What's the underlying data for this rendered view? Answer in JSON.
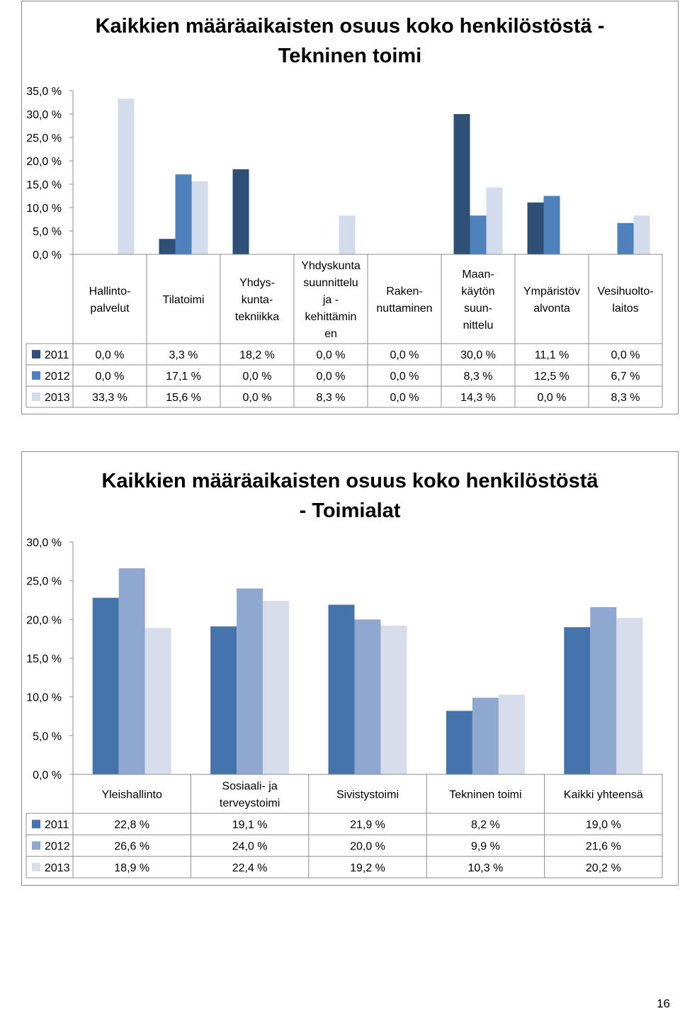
{
  "page_number": "16",
  "chart_data": [
    {
      "type": "bar",
      "title": "Kaikkien määräaikaisten osuus koko henkilöstöstä -\nTekninen toimi",
      "ylim": [
        0,
        35
      ],
      "y_ticks": [
        "0,0 %",
        "5,0 %",
        "10,0 %",
        "15,0 %",
        "20,0 %",
        "25,0 %",
        "30,0 %",
        "35,0 %"
      ],
      "grid": false,
      "legend": "table-below",
      "categories": [
        [
          "Hallinto-",
          "palvelut"
        ],
        [
          "Tilatoimi"
        ],
        [
          "Yhdys-",
          "kunta-",
          "tekniikka"
        ],
        [
          "Yhdyskunta",
          "suunnittelu",
          "ja -",
          "kehittämin",
          "en"
        ],
        [
          "Raken-",
          "nuttaminen"
        ],
        [
          "Maan-",
          "käytön",
          "suun-",
          "nittelu"
        ],
        [
          "Ympäristöv",
          "alvonta"
        ],
        [
          "Vesihuolto-",
          "laitos"
        ]
      ],
      "series": [
        {
          "name": "2011",
          "color": "#2e5077",
          "values": [
            0.0,
            3.3,
            18.2,
            0.0,
            0.0,
            30.0,
            11.1,
            0.0
          ],
          "labels": [
            "0,0 %",
            "3,3 %",
            "18,2 %",
            "0,0 %",
            "0,0 %",
            "30,0 %",
            "11,1 %",
            "0,0 %"
          ]
        },
        {
          "name": "2012",
          "color": "#4f81bd",
          "values": [
            0.0,
            17.1,
            0.0,
            0.0,
            0.0,
            8.3,
            12.5,
            6.7
          ],
          "labels": [
            "0,0 %",
            "17,1 %",
            "0,0 %",
            "0,0 %",
            "0,0 %",
            "8,3 %",
            "12,5 %",
            "6,7 %"
          ]
        },
        {
          "name": "2013",
          "color": "#d3dcec",
          "values": [
            33.3,
            15.6,
            0.0,
            8.3,
            0.0,
            14.3,
            0.0,
            8.3
          ],
          "labels": [
            "33,3 %",
            "15,6 %",
            "0,0 %",
            "8,3 %",
            "0,0 %",
            "14,3 %",
            "0,0 %",
            "8,3 %"
          ]
        }
      ]
    },
    {
      "type": "bar",
      "title": "Kaikkien määräaikaisten osuus koko henkilöstöstä\n- Toimialat",
      "ylim": [
        0,
        30
      ],
      "y_ticks": [
        "0,0 %",
        "5,0 %",
        "10,0 %",
        "15,0 %",
        "20,0 %",
        "25,0 %",
        "30,0 %"
      ],
      "grid": false,
      "legend": "table-below",
      "categories": [
        [
          "Yleishallinto"
        ],
        [
          "Sosiaali- ja",
          "terveystoimi"
        ],
        [
          "Sivistystoimi"
        ],
        [
          "Tekninen toimi"
        ],
        [
          "Kaikki yhteensä"
        ]
      ],
      "series": [
        {
          "name": "2011",
          "color": "#4573ab",
          "values": [
            22.8,
            19.1,
            21.9,
            8.2,
            19.0
          ],
          "labels": [
            "22,8 %",
            "19,1 %",
            "21,9 %",
            "8,2 %",
            "19,0 %"
          ]
        },
        {
          "name": "2012",
          "color": "#8ea8cf",
          "values": [
            26.6,
            24.0,
            20.0,
            9.9,
            21.6
          ],
          "labels": [
            "26,6 %",
            "24,0 %",
            "20,0 %",
            "9,9 %",
            "21,6 %"
          ]
        },
        {
          "name": "2013",
          "color": "#d6deec",
          "values": [
            18.9,
            22.4,
            19.2,
            10.3,
            20.2
          ],
          "labels": [
            "18,9 %",
            "22,4 %",
            "19,2 %",
            "10,3 %",
            "20,2 %"
          ]
        }
      ]
    }
  ]
}
